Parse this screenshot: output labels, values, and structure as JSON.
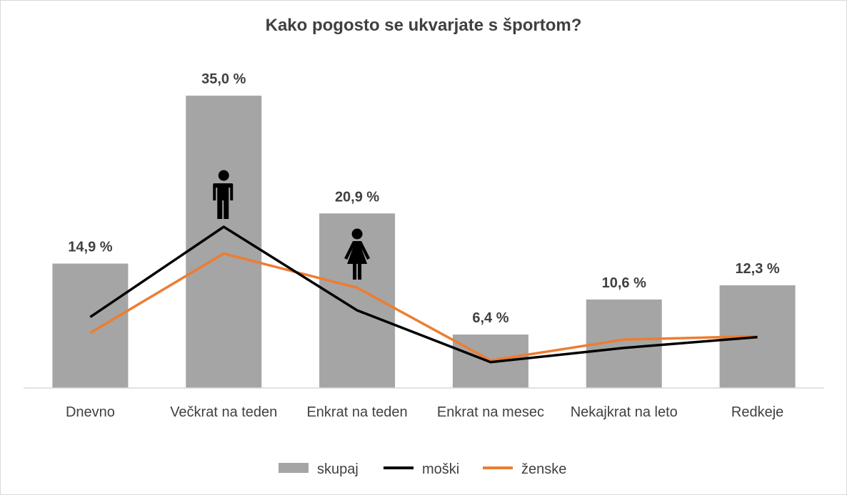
{
  "chart_data": {
    "type": "bar",
    "title": "Kako pogosto se ukvarjate s športom?",
    "categories": [
      "Dnevno",
      "Večkrat na teden",
      "Enkrat na teden",
      "Enkrat na mesec",
      "Nekajkrat na leto",
      "Redkeje"
    ],
    "series": [
      {
        "name": "skupaj",
        "type": "bar",
        "values": [
          14.9,
          35.0,
          20.9,
          6.4,
          10.6,
          12.3
        ],
        "color": "#a5a5a5",
        "labels": [
          "14,9 %",
          "35,0 %",
          "20,9 %",
          "6,4 %",
          "10,6 %",
          "12,3 %"
        ]
      },
      {
        "name": "moški",
        "type": "line",
        "values": [
          8.5,
          19.3,
          9.3,
          3.1,
          4.8,
          6.1
        ],
        "color": "#000000"
      },
      {
        "name": "ženske",
        "type": "line",
        "values": [
          6.6,
          16.1,
          12.0,
          3.3,
          5.8,
          6.2
        ],
        "color": "#ed7d31"
      }
    ],
    "ylim": [
      0,
      36
    ],
    "grid": false,
    "legend_position": "bottom",
    "icons": [
      {
        "name": "man-icon",
        "category": "Večkrat na teden"
      },
      {
        "name": "woman-icon",
        "category": "Enkrat na teden"
      }
    ]
  }
}
